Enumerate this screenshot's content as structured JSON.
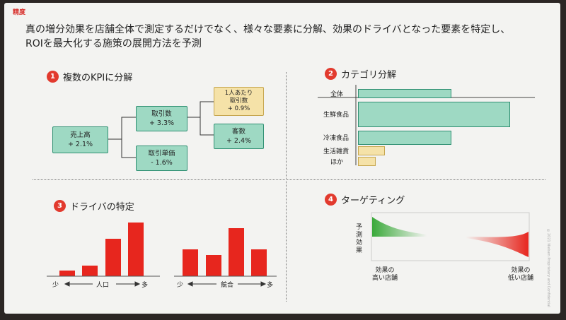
{
  "tag": "精度",
  "headline": {
    "line1": "真の増分効果を店舗全体で測定するだけでなく、様々な要素に分解、効果のドライバとなった要素を特定し、",
    "line2": "ROIを最大化する施策の展開方法を予測"
  },
  "sections": {
    "s1": {
      "num": "1",
      "title": "複数のKPIに分解"
    },
    "s2": {
      "num": "2",
      "title": "カテゴリ分解"
    },
    "s3": {
      "num": "3",
      "title": "ドライバの特定"
    },
    "s4": {
      "num": "4",
      "title": "ターゲティング"
    }
  },
  "kpi": {
    "sales": {
      "label": "売上高",
      "value": "+ 2.1%"
    },
    "transactions": {
      "label": "取引数",
      "value": "+ 3.3%"
    },
    "unit_price": {
      "label": "取引単価",
      "value": "- 1.6%"
    },
    "per_person": {
      "label1": "1人あたり",
      "label2": "取引数",
      "value": "+ 0.9%"
    },
    "customers": {
      "label": "客数",
      "value": "+ 2.4%"
    }
  },
  "category": {
    "items": [
      {
        "label": "全体",
        "level": 0.61
      },
      {
        "label": "生鮮食品",
        "level": 1.0
      },
      {
        "label": "冷凍食品",
        "level": 0.61
      },
      {
        "label": "生活雑貨",
        "level": 0.17
      },
      {
        "label": "ほか",
        "level": 0.11
      }
    ]
  },
  "drivers": {
    "chart1": {
      "values": [
        1,
        2,
        7,
        10
      ],
      "axis_low": "少",
      "axis_label": "人口",
      "axis_high": "多"
    },
    "chart2": {
      "values": [
        5,
        4,
        9,
        5
      ],
      "axis_low": "少",
      "axis_label": "競合",
      "axis_high": "多"
    }
  },
  "targeting": {
    "ylabel": "予測\n効果",
    "left_label": "効果の\n高い店舗",
    "right_label": "効果の\n低い店舗",
    "colors": {
      "high": "#3aa93a",
      "low": "#e7261e"
    }
  },
  "side_note": "©2021 Nielsen Proprietary and Confidential"
}
